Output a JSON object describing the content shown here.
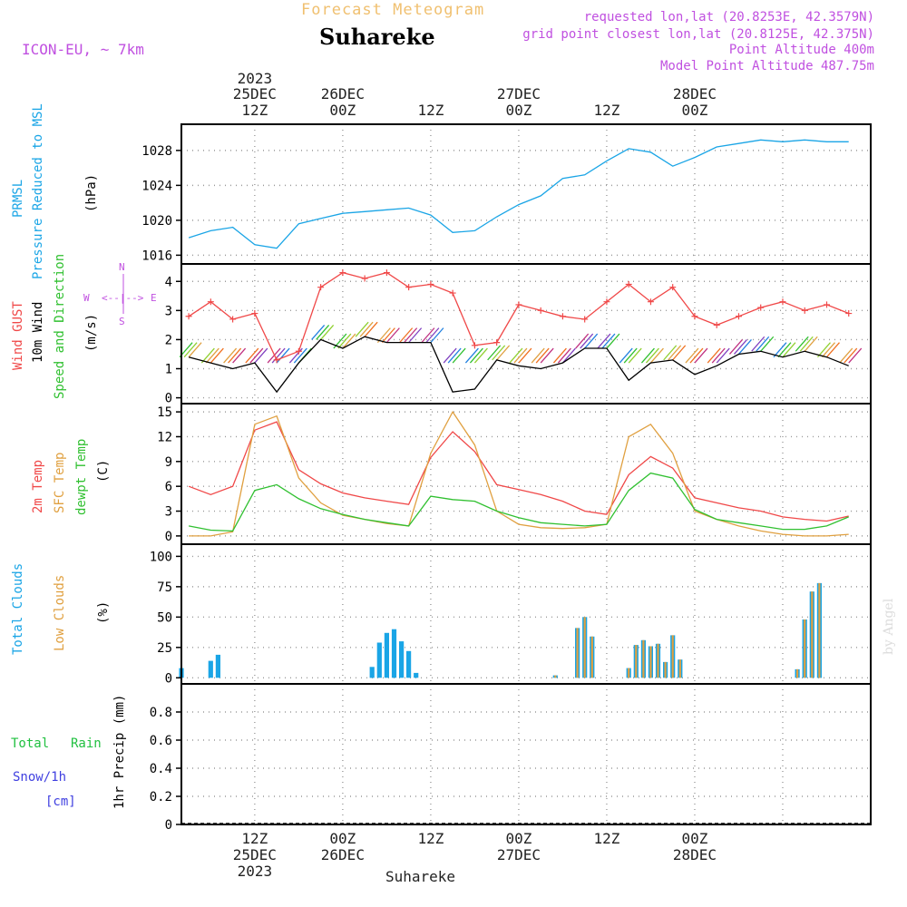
{
  "header": {
    "title": "Forecast Meteogram",
    "location": "Suhareke",
    "model": "ICON-EU, ~ 7km",
    "requested": "requested lon,lat (20.8253E, 42.3579N)",
    "gridpoint": "grid point closest lon,lat (20.8125E, 42.375N)",
    "point_alt": "Point Altitude 400m",
    "model_alt": "Model Point Altitude 487.75m"
  },
  "time_axis": {
    "top_labels": [
      {
        "l1": "2023",
        "l2": "25DEC",
        "l3": "12Z"
      },
      {
        "l1": "",
        "l2": "26DEC",
        "l3": "00Z"
      },
      {
        "l1": "",
        "l2": "",
        "l3": "12Z"
      },
      {
        "l1": "",
        "l2": "27DEC",
        "l3": "00Z"
      },
      {
        "l1": "",
        "l2": "",
        "l3": "12Z"
      },
      {
        "l1": "",
        "l2": "28DEC",
        "l3": "00Z"
      }
    ],
    "bottom_labels": [
      {
        "l1": "12Z",
        "l2": "25DEC",
        "l3": "2023"
      },
      {
        "l1": "00Z",
        "l2": "26DEC",
        "l3": ""
      },
      {
        "l1": "12Z",
        "l2": "",
        "l3": ""
      },
      {
        "l1": "00Z",
        "l2": "27DEC",
        "l3": ""
      },
      {
        "l1": "12Z",
        "l2": "",
        "l3": ""
      },
      {
        "l1": "00Z",
        "l2": "28DEC",
        "l3": ""
      }
    ],
    "footer": "Suhareke"
  },
  "labels": {
    "prmsl": "PRMSL",
    "pressure": "Pressure Reduced to MSL",
    "hpa": "(hPa)",
    "gust": "Wind GUST",
    "wind10": "10m Wind",
    "speed_dir": "Speed and Direction",
    "ms": "(m/s)",
    "compass_n": "N",
    "compass_w": "W",
    "compass_e": "E",
    "compass_s": "S",
    "compass_mid": "<--|-->",
    "temp2m": "2m Temp",
    "sfc": "SFC Temp",
    "dewpt": "dewpt Temp",
    "c_unit": "(C)",
    "total_clouds": "Total Clouds",
    "low_clouds": "Low Clouds",
    "pct": "(%)",
    "total_rain": "Total",
    "rain": "Rain",
    "snow": "Snow/1h",
    "cm": "[cm]",
    "precip": "1hr Precip (mm)",
    "watermark": "by Angel"
  },
  "colors": {
    "pressure": "#1aa5e6",
    "gust": "#f04848",
    "wind": "#000000",
    "t2m": "#f04848",
    "sfc": "#e0a040",
    "dew": "#30c030",
    "total_cloud": "#1aa5e6",
    "low_cloud": "#e0a040",
    "rain": "#20c040",
    "snow": "#4040e0",
    "meta": "#c050e0"
  },
  "chart_data": [
    {
      "type": "line",
      "name": "Pressure Reduced to MSL",
      "x_units": "hours since 25DEC 00Z",
      "ylim": [
        1015,
        1031
      ],
      "yticks": [
        1016,
        1020,
        1024,
        1028
      ],
      "x": [
        3,
        6,
        9,
        12,
        15,
        18,
        21,
        24,
        27,
        30,
        33,
        36,
        39,
        42,
        45,
        48,
        51,
        54,
        57,
        60,
        63,
        66,
        69,
        72,
        75,
        78,
        81,
        84,
        87,
        90,
        93
      ],
      "values": [
        1018,
        1018.8,
        1019.2,
        1017.2,
        1016.8,
        1019.6,
        1020.2,
        1020.8,
        1021,
        1021.2,
        1021.4,
        1020.6,
        1018.6,
        1018.8,
        1020.4,
        1021.8,
        1022.8,
        1024.8,
        1025.2,
        1026.8,
        1028.2,
        1027.8,
        1026.2,
        1027.2,
        1028.4,
        1028.8,
        1029.2,
        1029,
        1029.2,
        1029,
        1029
      ],
      "grid": true
    },
    {
      "type": "line",
      "name": "Wind",
      "x_units": "hours since 25DEC 00Z",
      "ylim": [
        -0.2,
        4.6
      ],
      "yticks": [
        0,
        1,
        2,
        3,
        4
      ],
      "x": [
        3,
        6,
        9,
        12,
        15,
        18,
        21,
        24,
        27,
        30,
        33,
        36,
        39,
        42,
        45,
        48,
        51,
        54,
        57,
        60,
        63,
        66,
        69,
        72,
        75,
        78,
        81,
        84,
        87,
        90,
        93
      ],
      "series": [
        {
          "name": "Wind GUST",
          "values": [
            2.8,
            3.3,
            2.7,
            2.9,
            1.3,
            1.6,
            3.8,
            4.3,
            4.1,
            4.3,
            3.8,
            3.9,
            3.6,
            1.8,
            1.9,
            3.2,
            3.0,
            2.8,
            2.7,
            3.3,
            3.9,
            3.3,
            3.8,
            2.8,
            2.5,
            2.8,
            3.1,
            3.3,
            3.0,
            3.2,
            2.9
          ]
        },
        {
          "name": "10m Wind",
          "values": [
            1.4,
            1.2,
            1.0,
            1.2,
            0.2,
            1.2,
            2.0,
            1.7,
            2.1,
            1.9,
            1.9,
            1.9,
            0.2,
            0.3,
            1.3,
            1.1,
            1.0,
            1.2,
            1.7,
            1.7,
            0.6,
            1.2,
            1.3,
            0.8,
            1.1,
            1.5,
            1.6,
            1.4,
            1.6,
            1.4,
            1.1
          ]
        }
      ],
      "grid": true
    },
    {
      "type": "line",
      "name": "Temperature",
      "x_units": "hours since 25DEC 00Z",
      "ylim": [
        -1,
        16
      ],
      "yticks": [
        0,
        3,
        6,
        9,
        12,
        15
      ],
      "x": [
        3,
        6,
        9,
        12,
        15,
        18,
        21,
        24,
        27,
        30,
        33,
        36,
        39,
        42,
        45,
        48,
        51,
        54,
        57,
        60,
        63,
        66,
        69,
        72,
        75,
        78,
        81,
        84,
        87,
        90,
        93
      ],
      "series": [
        {
          "name": "2m Temp",
          "values": [
            6,
            5,
            6,
            12.8,
            13.8,
            8,
            6.3,
            5.2,
            4.6,
            4.2,
            3.8,
            9.5,
            12.6,
            10.2,
            6.2,
            5.6,
            5.0,
            4.2,
            3.0,
            2.6,
            7.4,
            9.6,
            8.2,
            4.6,
            4.0,
            3.4,
            3.0,
            2.3,
            2.0,
            1.8,
            2.4
          ]
        },
        {
          "name": "SFC Temp",
          "values": [
            0,
            0,
            0.5,
            13.5,
            14.5,
            7,
            4,
            2.5,
            2,
            1.5,
            1.2,
            10,
            15,
            11,
            3,
            1.4,
            1,
            0.9,
            1,
            1.4,
            12,
            13.5,
            10,
            3,
            2,
            1.2,
            0.6,
            0.2,
            0,
            0,
            0.2
          ]
        },
        {
          "name": "dewpt Temp",
          "values": [
            1.2,
            0.7,
            0.6,
            5.5,
            6.2,
            4.5,
            3.3,
            2.6,
            2.0,
            1.6,
            1.2,
            4.8,
            4.4,
            4.2,
            3.0,
            2.2,
            1.6,
            1.4,
            1.2,
            1.4,
            5.5,
            7.6,
            7.0,
            3.2,
            2.0,
            1.6,
            1.2,
            0.8,
            0.8,
            1.2,
            2.3
          ]
        }
      ],
      "grid": true
    },
    {
      "type": "bar",
      "name": "Clouds",
      "x_units": "hours since 25DEC 00Z",
      "ylim": [
        -5,
        110
      ],
      "yticks": [
        0,
        25,
        50,
        75,
        100
      ],
      "series": [
        {
          "name": "Total Clouds",
          "x": [
            0,
            6,
            7,
            28,
            29,
            30,
            31,
            32,
            33,
            34,
            53,
            56,
            57,
            58,
            63,
            64,
            65,
            66,
            67,
            68,
            69,
            70,
            86,
            87,
            88,
            89
          ],
          "values": [
            8,
            14,
            19,
            9,
            29,
            37,
            40,
            30,
            22,
            4,
            2,
            41,
            50,
            34,
            8,
            27,
            31,
            26,
            28,
            13,
            35,
            15,
            7,
            48,
            71,
            78
          ]
        },
        {
          "name": "Low Clouds",
          "x": [
            53,
            56,
            57,
            58,
            63,
            64,
            65,
            66,
            67,
            68,
            69,
            70,
            86,
            87,
            88,
            89
          ],
          "values": [
            2,
            41,
            50,
            34,
            8,
            27,
            31,
            26,
            28,
            13,
            35,
            15,
            7,
            48,
            71,
            78
          ]
        }
      ],
      "grid": true
    },
    {
      "type": "bar",
      "name": "Precipitation",
      "x_units": "hours since 25DEC 00Z",
      "ylim": [
        0,
        1.0
      ],
      "yticks": [
        0,
        0.2,
        0.4,
        0.6,
        0.8
      ],
      "ytick_labels": [
        "0",
        "0.2",
        "0.4",
        "0.6",
        "0.8"
      ],
      "series": [
        {
          "name": "Total Rain",
          "values": []
        },
        {
          "name": "Snow/1h",
          "values": []
        }
      ],
      "grid": true
    }
  ]
}
